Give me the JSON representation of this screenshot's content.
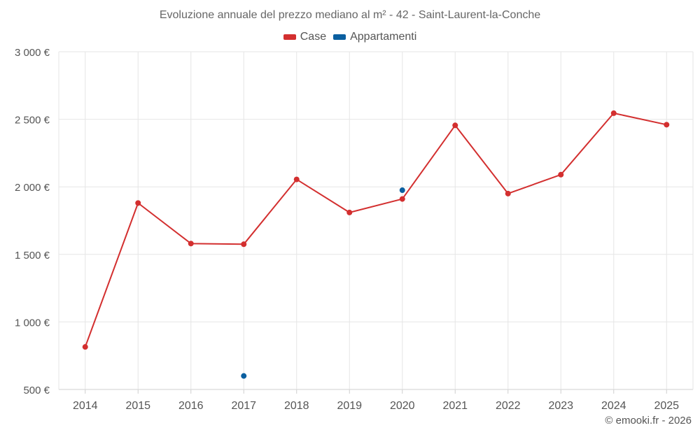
{
  "colors": {
    "case": "#d32f2f",
    "appartamenti": "#0a5fa0",
    "grid": "#e6e6e6",
    "axis": "#cfcfcf"
  },
  "credit": "© emooki.fr - 2026",
  "chart_data": {
    "type": "line",
    "title": "Evoluzione annuale del prezzo mediano al m² - 42 - Saint-Laurent-la-Conche",
    "xlabel": "",
    "ylabel": "",
    "categories": [
      "2014",
      "2015",
      "2016",
      "2017",
      "2018",
      "2019",
      "2020",
      "2021",
      "2022",
      "2023",
      "2024",
      "2025"
    ],
    "ylim": [
      500,
      3000
    ],
    "yticks": [
      500,
      1000,
      1500,
      2000,
      2500,
      3000
    ],
    "ytick_labels": [
      "500 €",
      "1 000 €",
      "1 500 €",
      "2 000 €",
      "2 500 €",
      "3 000 €"
    ],
    "legend_position": "top-center",
    "grid": true,
    "series": [
      {
        "name": "Case",
        "color": "#d32f2f",
        "line": true,
        "values": [
          815,
          1880,
          1580,
          1575,
          2055,
          1810,
          1910,
          2455,
          1950,
          2090,
          2545,
          2460
        ]
      },
      {
        "name": "Appartamenti",
        "color": "#0a5fa0",
        "line": false,
        "values": [
          null,
          null,
          null,
          600,
          null,
          null,
          1975,
          null,
          null,
          null,
          null,
          null
        ]
      }
    ]
  }
}
